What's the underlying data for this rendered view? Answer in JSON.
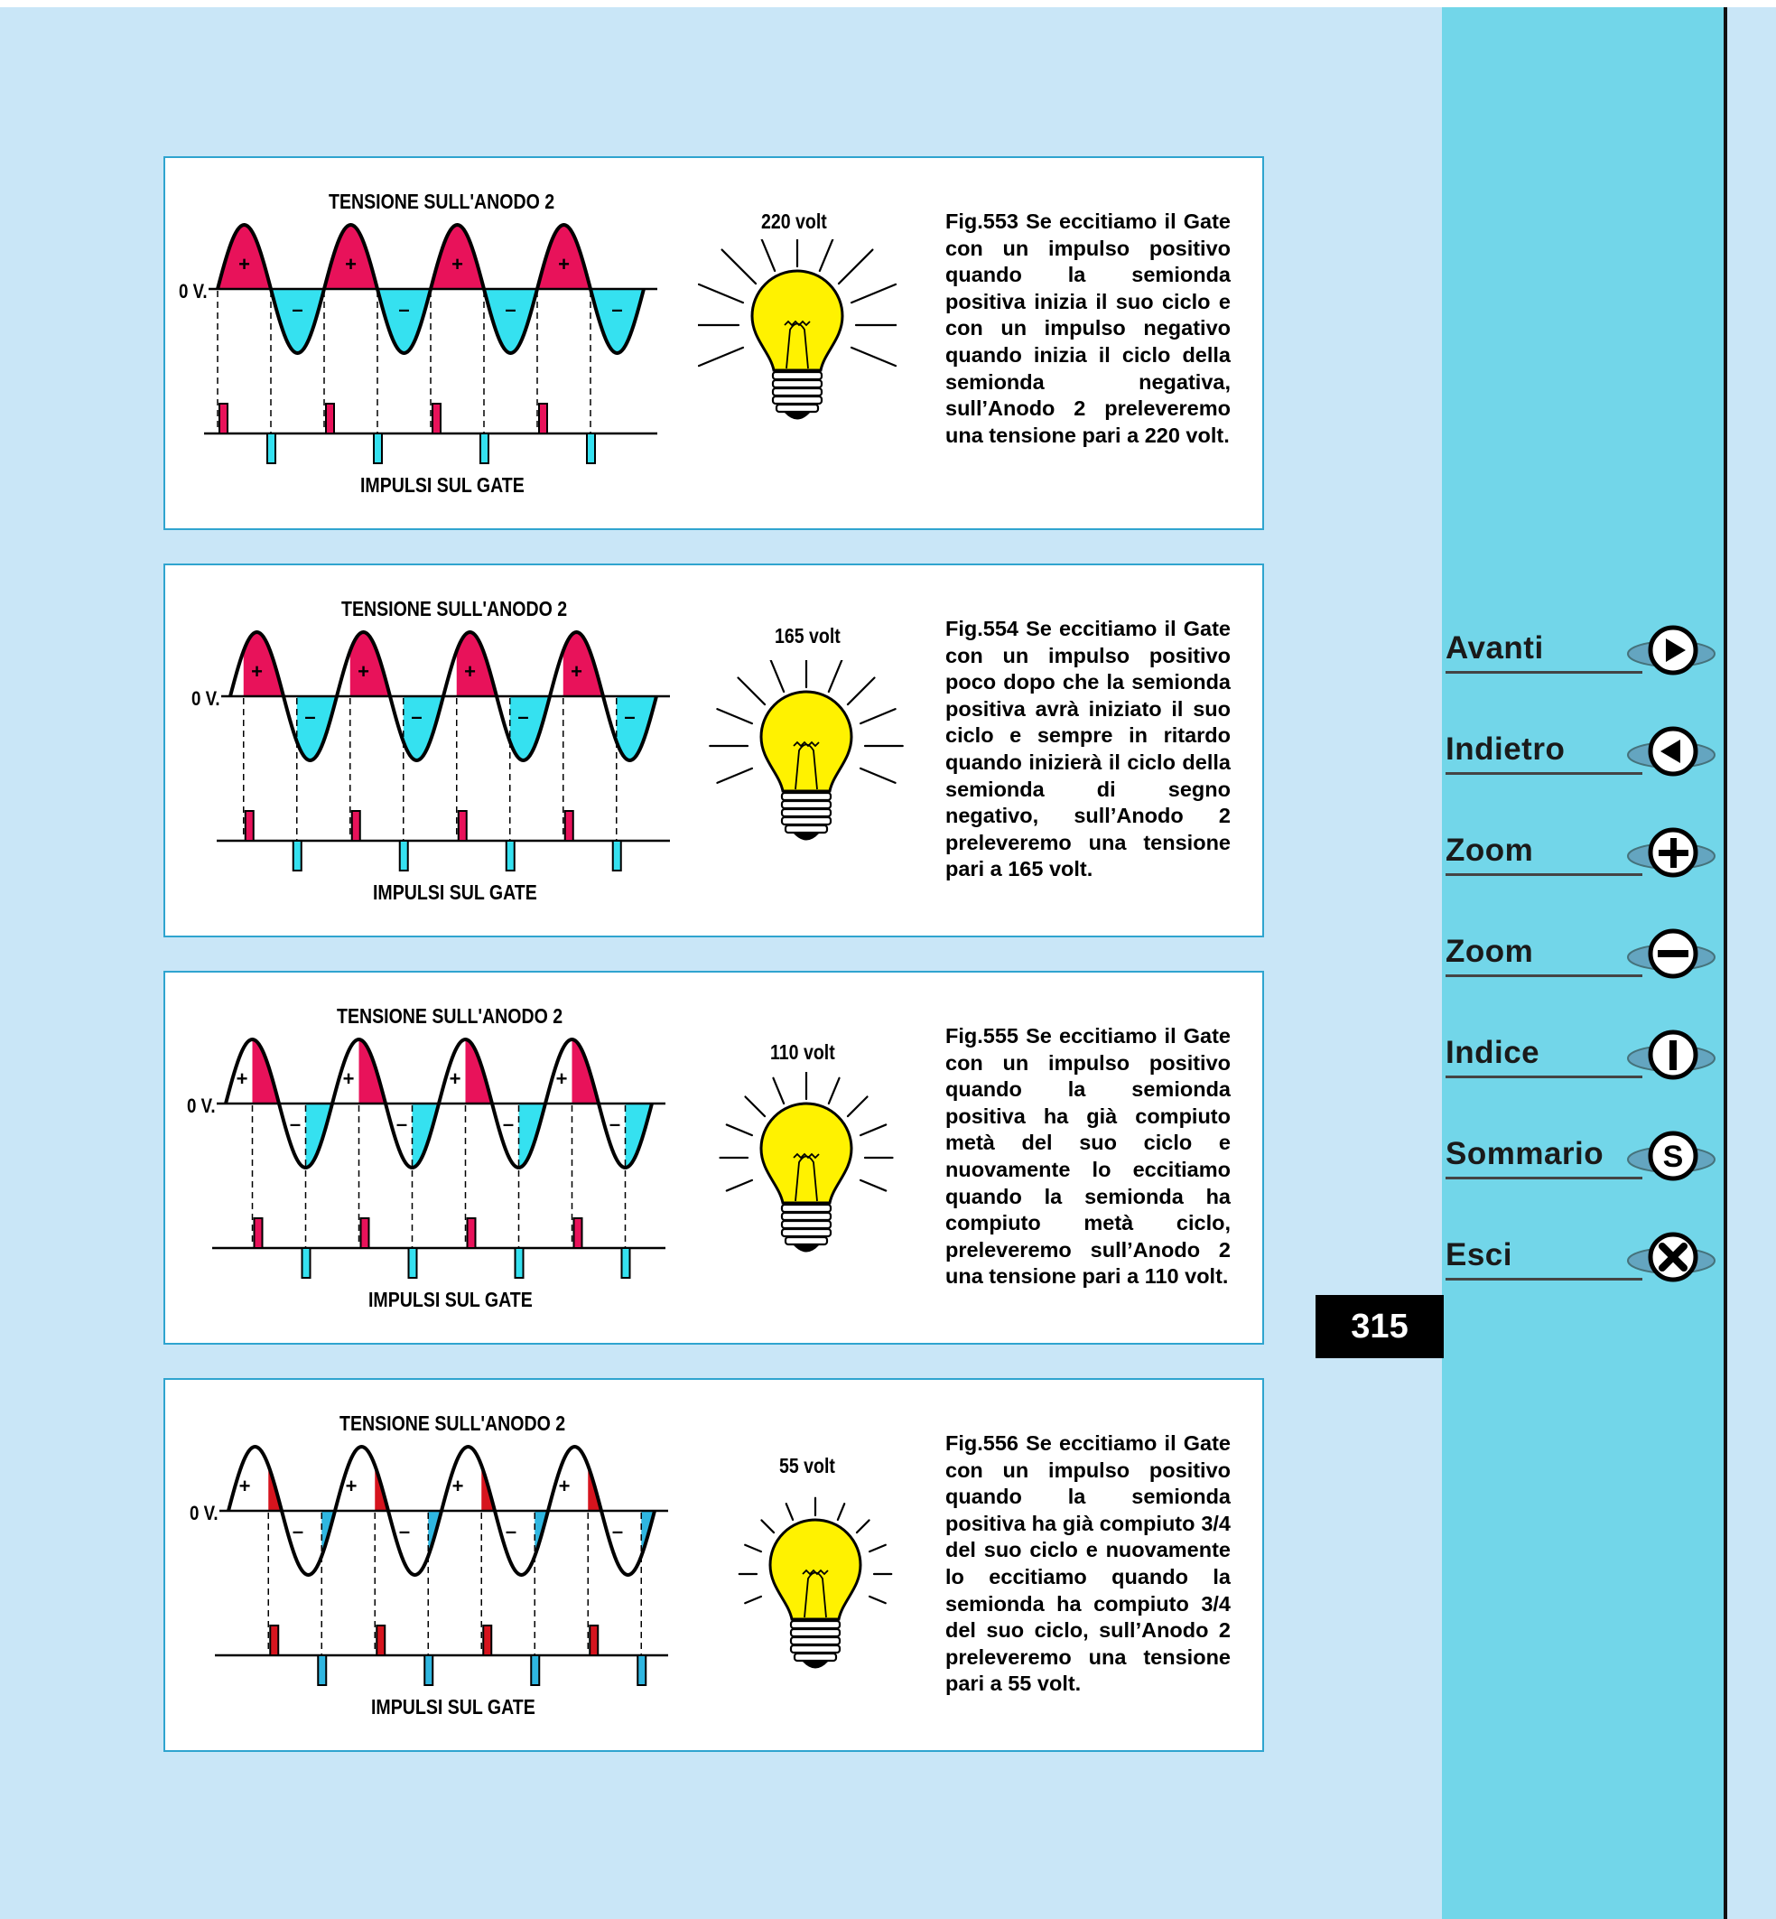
{
  "page_number": "315",
  "colors": {
    "positive": "#e8125a",
    "negative": "#35e1f0",
    "positive_late": "#d6141e",
    "negative_late": "#2fb6e0",
    "bulb": "#fff200",
    "sidebar": "#72d6e9",
    "background": "#c9e6f7",
    "border": "#2fa4cf"
  },
  "nav": [
    {
      "label": "Avanti",
      "icon": "play-right-icon"
    },
    {
      "label": "Indietro",
      "icon": "play-left-icon"
    },
    {
      "label": "Zoom",
      "icon": "plus-icon"
    },
    {
      "label": "Zoom",
      "icon": "minus-icon"
    },
    {
      "label": "Indice",
      "icon": "i-icon"
    },
    {
      "label": "Sommario",
      "icon": "s-icon"
    },
    {
      "label": "Esci",
      "icon": "x-icon"
    }
  ],
  "figures": [
    {
      "wave_title": "TENSIONE SULL'ANODO 2",
      "zero_label": "0 V.",
      "gate_title": "IMPULSI SUL GATE",
      "plus": "+",
      "minus": "–",
      "volt_label": "220 volt",
      "conduction_fraction": 1.0,
      "caption": "Fig.553 Se eccitiamo il Gate con un impulso positivo quando la semionda positiva inizia il suo ciclo e con un impulso negativo quando inizia il ciclo della semionda negativa, sull’Anodo 2 preleveremo una tensione pari a 220 volt."
    },
    {
      "wave_title": "TENSIONE SULL'ANODO 2",
      "zero_label": "0 V.",
      "gate_title": "IMPULSI SUL GATE",
      "plus": "+",
      "minus": "–",
      "volt_label": "165 volt",
      "conduction_fraction": 0.75,
      "caption": "Fig.554 Se eccitiamo il Gate con un impulso positivo poco dopo che la semionda positiva avrà iniziato il suo ciclo e sempre in ritardo quando inizierà il ciclo della semionda di segno negativo, sull’Anodo 2 preleveremo una tensione pari a 165 volt."
    },
    {
      "wave_title": "TENSIONE SULL'ANODO 2",
      "zero_label": "0 V.",
      "gate_title": "IMPULSI SUL GATE",
      "plus": "+",
      "minus": "–",
      "volt_label": "110 volt",
      "conduction_fraction": 0.5,
      "caption": "Fig.555 Se eccitiamo il Gate con un impulso positivo quando la semionda positiva ha già compiuto metà del suo ciclo e nuovamente lo eccitiamo quando la semionda ha compiuto metà ciclo, preleveremo sull’Anodo 2 una tensione pari a 110 volt."
    },
    {
      "wave_title": "TENSIONE SULL'ANODO 2",
      "zero_label": "0 V.",
      "gate_title": "IMPULSI SUL GATE",
      "plus": "+",
      "minus": "–",
      "volt_label": "55 volt",
      "conduction_fraction": 0.25,
      "caption": "Fig.556 Se eccitiamo il Gate con un impulso positivo quando la semionda positiva ha già compiuto 3/4 del suo ciclo e nuovamente lo eccitiamo quando la semionda ha compiuto 3/4 del suo ciclo, sull’Anodo 2 preleveremo una tensione pari a 55 volt."
    }
  ]
}
